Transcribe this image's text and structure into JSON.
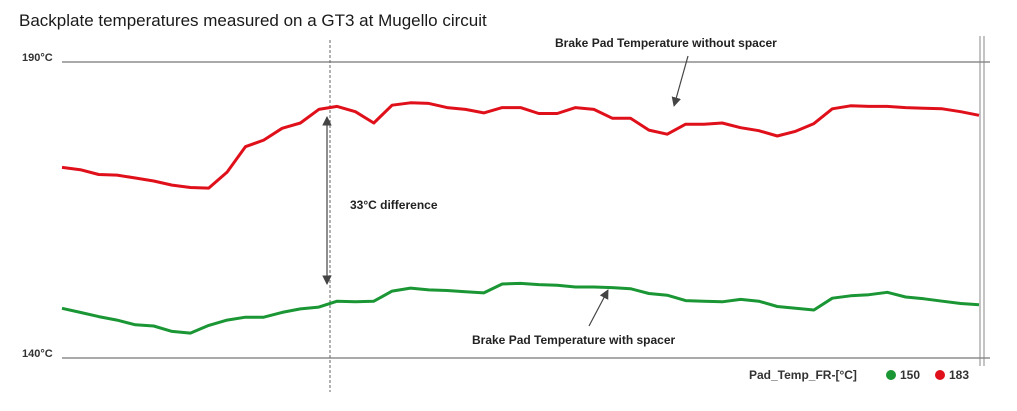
{
  "chart_data": {
    "type": "line",
    "title": "Backplate temperatures measured on a GT3 at Mugello circuit",
    "ylim": [
      140,
      190
    ],
    "yticks": [
      "190°C",
      "140°C"
    ],
    "grid": false,
    "legend_position": "bottom-right",
    "legend": {
      "channel": "Pad_Temp_FR-[°C]",
      "items": [
        {
          "value": "150",
          "color": "#1a9634"
        },
        {
          "value": "183",
          "color": "#e0101b"
        }
      ]
    },
    "series": [
      {
        "color": "#e0101b",
        "x": [
          0,
          2,
          4,
          6,
          8,
          10,
          12,
          14,
          16,
          18,
          20,
          22,
          24,
          26,
          28,
          30,
          32,
          34,
          36,
          38,
          40,
          42,
          44,
          46,
          48,
          50,
          52,
          54,
          56,
          58,
          60,
          62,
          64,
          66,
          68,
          70,
          72,
          74,
          76,
          78,
          80,
          82,
          84,
          86,
          88,
          90,
          92,
          94,
          96,
          98,
          100
        ],
        "y": [
          172.2,
          171.8,
          171.0,
          170.9,
          170.4,
          169.9,
          169.2,
          168.8,
          168.7,
          171.4,
          175.7,
          176.8,
          178.8,
          179.7,
          182.0,
          182.5,
          181.6,
          179.7,
          182.7,
          183.1,
          183.0,
          182.3,
          182.0,
          181.4,
          182.3,
          182.3,
          181.3,
          181.3,
          182.3,
          182.0,
          180.5,
          180.5,
          178.5,
          177.8,
          179.5,
          179.5,
          179.7,
          178.9,
          178.4,
          177.5,
          178.3,
          179.6,
          182.1,
          182.6,
          182.5,
          182.5,
          182.3,
          182.2,
          182.1,
          181.6,
          181.0
        ]
      },
      {
        "color": "#1a9634",
        "x": [
          0,
          2,
          4,
          6,
          8,
          10,
          12,
          14,
          16,
          18,
          20,
          22,
          24,
          26,
          28,
          30,
          32,
          34,
          36,
          38,
          40,
          42,
          44,
          46,
          48,
          50,
          52,
          54,
          56,
          58,
          60,
          62,
          64,
          66,
          68,
          70,
          72,
          74,
          76,
          78,
          80,
          82,
          84,
          86,
          88,
          90,
          92,
          94,
          96,
          98,
          100
        ],
        "y": [
          148.4,
          147.7,
          147.0,
          146.4,
          145.6,
          145.4,
          144.5,
          144.2,
          145.5,
          146.4,
          146.9,
          146.9,
          147.7,
          148.3,
          148.6,
          149.6,
          149.5,
          149.6,
          151.3,
          151.8,
          151.5,
          151.4,
          151.2,
          151.0,
          152.5,
          152.6,
          152.4,
          152.3,
          152.0,
          152.0,
          151.9,
          151.7,
          150.9,
          150.6,
          149.7,
          149.6,
          149.5,
          149.9,
          149.6,
          148.7,
          148.4,
          148.1,
          150.1,
          150.5,
          150.7,
          151.1,
          150.3,
          150.0,
          149.6,
          149.2,
          149.0
        ]
      }
    ],
    "annotations": {
      "top": "Brake Pad Temperature without spacer",
      "bottom": "Brake Pad Temperature with spacer",
      "difference": "33°C difference"
    }
  }
}
